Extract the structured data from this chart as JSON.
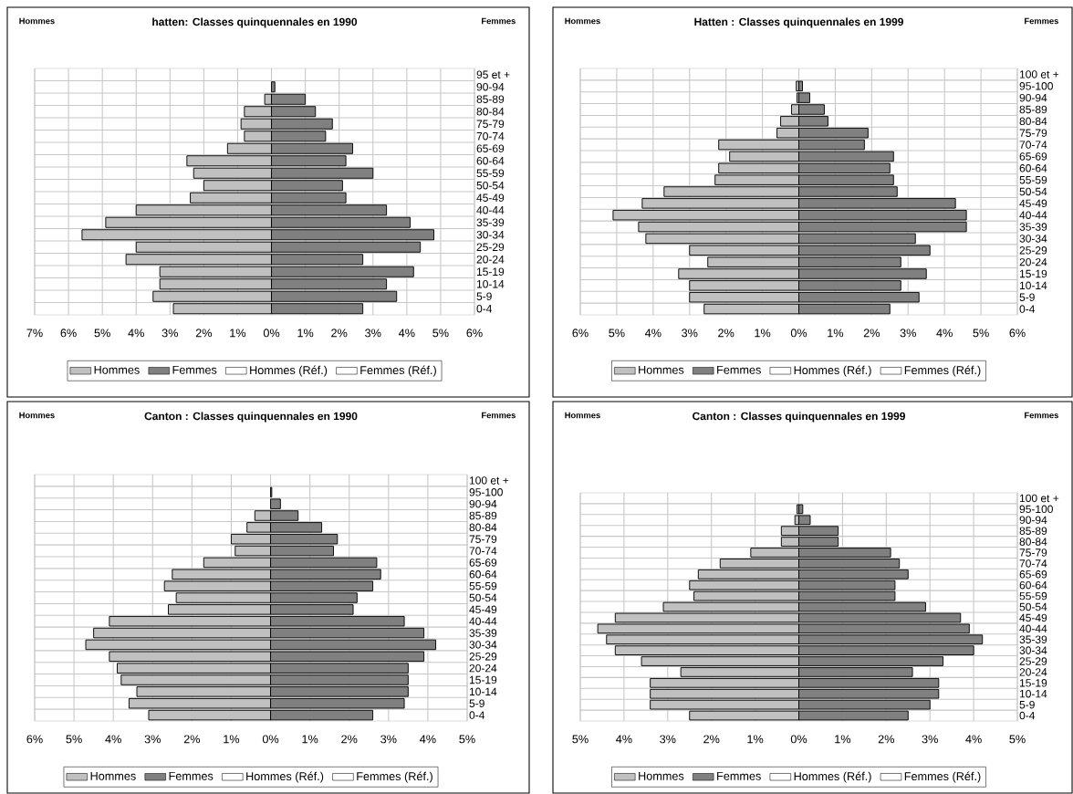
{
  "chart_data": [
    {
      "type": "bar",
      "orientation": "horizontal",
      "title": "hatten: Classes quinquennales en 1990",
      "annotations": [
        "Hommes",
        "Femmes"
      ],
      "categories": [
        "95 et +",
        "90-94",
        "85-89",
        "80-84",
        "75-79",
        "70-74",
        "65-69",
        "60-64",
        "55-59",
        "50-54",
        "45-49",
        "40-44",
        "35-39",
        "30-34",
        "25-29",
        "20-24",
        "15-19",
        "10-14",
        "5-9",
        "0-4"
      ],
      "series": [
        {
          "name": "Hommes",
          "color": "#c0c0c0",
          "values": [
            null,
            null,
            -0.2,
            -0.8,
            -0.9,
            -0.8,
            -1.3,
            -2.5,
            -2.3,
            -2.0,
            -2.4,
            -4.0,
            -4.9,
            -5.6,
            -4.0,
            -4.3,
            -3.3,
            -3.3,
            -3.5,
            -2.9
          ]
        },
        {
          "name": "Femmes",
          "color": "#808080",
          "values": [
            null,
            0.1,
            1.0,
            1.3,
            1.8,
            1.6,
            2.4,
            2.2,
            3.0,
            2.1,
            2.2,
            3.4,
            4.1,
            4.8,
            4.4,
            2.7,
            4.2,
            3.4,
            3.7,
            2.7
          ]
        },
        {
          "name": "Hommes (Réf.)",
          "color": "#ffffff",
          "values": [
            null,
            null,
            null,
            null,
            null,
            null,
            null,
            null,
            null,
            null,
            null,
            null,
            null,
            null,
            null,
            null,
            null,
            null,
            null,
            null
          ]
        },
        {
          "name": "Femmes (Réf.)",
          "color": "#ffffff",
          "values": [
            null,
            null,
            null,
            null,
            null,
            null,
            null,
            null,
            null,
            null,
            null,
            null,
            null,
            null,
            null,
            null,
            null,
            null,
            null,
            null
          ]
        }
      ],
      "xlim": [
        -7,
        6
      ],
      "xticks": [
        {
          "value": -7,
          "label": "7%"
        },
        {
          "value": -6,
          "label": "6%"
        },
        {
          "value": -5,
          "label": "5%"
        },
        {
          "value": -4,
          "label": "4%"
        },
        {
          "value": -3,
          "label": "3%"
        },
        {
          "value": -2,
          "label": "2%"
        },
        {
          "value": -1,
          "label": "1%"
        },
        {
          "value": 0,
          "label": "0%"
        },
        {
          "value": 1,
          "label": "1%"
        },
        {
          "value": 2,
          "label": "2%"
        },
        {
          "value": 3,
          "label": "3%"
        },
        {
          "value": 4,
          "label": "4%"
        },
        {
          "value": 5,
          "label": "5%"
        },
        {
          "value": 6,
          "label": "6%"
        }
      ],
      "stacked": true,
      "grid": true,
      "legend": "bottom"
    },
    {
      "type": "bar",
      "orientation": "horizontal",
      "title": "Hatten : Classes quinquennales en 1999",
      "annotations": [
        "Hommes",
        "Femmes"
      ],
      "categories": [
        "100 et +",
        "95-100",
        "90-94",
        "85-89",
        "80-84",
        "75-79",
        "70-74",
        "65-69",
        "60-64",
        "55-59",
        "50-54",
        "45-49",
        "40-44",
        "35-39",
        "30-34",
        "25-29",
        "20-24",
        "15-19",
        "10-14",
        "5-9",
        "0-4"
      ],
      "series": [
        {
          "name": "Hommes",
          "color": "#c0c0c0",
          "values": [
            null,
            -0.07,
            -0.05,
            -0.2,
            -0.5,
            -0.6,
            -2.2,
            -1.9,
            -2.2,
            -2.3,
            -3.7,
            -4.3,
            -5.1,
            -4.4,
            -4.2,
            -3.0,
            -2.5,
            -3.3,
            -3.0,
            -3.0,
            -2.6
          ]
        },
        {
          "name": "Femmes",
          "color": "#808080",
          "values": [
            null,
            0.1,
            0.3,
            0.7,
            0.8,
            1.9,
            1.8,
            2.6,
            2.5,
            2.6,
            2.7,
            4.3,
            4.6,
            4.6,
            3.2,
            3.6,
            2.8,
            3.5,
            2.8,
            3.3,
            2.5
          ]
        },
        {
          "name": "Hommes (Réf.)",
          "color": "#ffffff",
          "values": [
            null,
            null,
            null,
            null,
            null,
            null,
            null,
            null,
            null,
            null,
            null,
            null,
            null,
            null,
            null,
            null,
            null,
            null,
            null,
            null,
            null
          ]
        },
        {
          "name": "Femmes (Réf.)",
          "color": "#ffffff",
          "values": [
            null,
            null,
            null,
            null,
            null,
            null,
            null,
            null,
            null,
            null,
            null,
            null,
            null,
            null,
            null,
            null,
            null,
            null,
            null,
            null,
            null
          ]
        }
      ],
      "xlim": [
        -6,
        6
      ],
      "xticks": [
        {
          "value": -6,
          "label": "6%"
        },
        {
          "value": -5,
          "label": "5%"
        },
        {
          "value": -4,
          "label": "4%"
        },
        {
          "value": -3,
          "label": "3%"
        },
        {
          "value": -2,
          "label": "2%"
        },
        {
          "value": -1,
          "label": "1%"
        },
        {
          "value": 0,
          "label": "0%"
        },
        {
          "value": 1,
          "label": "1%"
        },
        {
          "value": 2,
          "label": "2%"
        },
        {
          "value": 3,
          "label": "3%"
        },
        {
          "value": 4,
          "label": "4%"
        },
        {
          "value": 5,
          "label": "5%"
        },
        {
          "value": 6,
          "label": "6%"
        }
      ],
      "stacked": true,
      "grid": true,
      "legend": "bottom"
    },
    {
      "type": "bar",
      "orientation": "horizontal",
      "title": "Canton : Classes quinquennales en 1990",
      "annotations": [
        "Hommes",
        "Femmes"
      ],
      "categories": [
        "100 et +",
        "95-100",
        "90-94",
        "85-89",
        "80-84",
        "75-79",
        "70-74",
        "65-69",
        "60-64",
        "55-59",
        "50-54",
        "45-49",
        "40-44",
        "35-39",
        "30-34",
        "25-29",
        "20-24",
        "15-19",
        "10-14",
        "5-9",
        "0-4"
      ],
      "series": [
        {
          "name": "Hommes",
          "color": "#c0c0c0",
          "values": [
            null,
            null,
            null,
            -0.4,
            -0.6,
            -1.0,
            -0.9,
            -1.7,
            -2.5,
            -2.7,
            -2.4,
            -2.6,
            -4.1,
            -4.5,
            -4.7,
            -4.1,
            -3.9,
            -3.8,
            -3.4,
            -3.6,
            -3.1
          ]
        },
        {
          "name": "Femmes",
          "color": "#808080",
          "values": [
            null,
            0.03,
            0.25,
            0.7,
            1.3,
            1.7,
            1.6,
            2.7,
            2.8,
            2.6,
            2.2,
            2.1,
            3.4,
            3.9,
            4.2,
            3.9,
            3.5,
            3.5,
            3.5,
            3.4,
            2.6
          ]
        },
        {
          "name": "Hommes (Réf.)",
          "color": "#ffffff",
          "values": [
            null,
            null,
            null,
            null,
            null,
            null,
            null,
            null,
            null,
            null,
            null,
            null,
            null,
            null,
            null,
            null,
            null,
            null,
            null,
            null,
            null
          ]
        },
        {
          "name": "Femmes (Réf.)",
          "color": "#ffffff",
          "values": [
            null,
            null,
            null,
            null,
            null,
            null,
            null,
            null,
            null,
            null,
            null,
            null,
            null,
            null,
            null,
            null,
            null,
            null,
            null,
            null,
            null
          ]
        }
      ],
      "xlim": [
        -6,
        5
      ],
      "xticks": [
        {
          "value": -6,
          "label": "6%"
        },
        {
          "value": -5,
          "label": "5%"
        },
        {
          "value": -4,
          "label": "4%"
        },
        {
          "value": -3,
          "label": "3%"
        },
        {
          "value": -2,
          "label": "2%"
        },
        {
          "value": -1,
          "label": "1%"
        },
        {
          "value": 0,
          "label": "0%"
        },
        {
          "value": 1,
          "label": "1%"
        },
        {
          "value": 2,
          "label": "2%"
        },
        {
          "value": 3,
          "label": "3%"
        },
        {
          "value": 4,
          "label": "4%"
        },
        {
          "value": 5,
          "label": "5%"
        }
      ],
      "stacked": true,
      "grid": true,
      "legend": "bottom"
    },
    {
      "type": "bar",
      "orientation": "horizontal",
      "title": "Canton : Classes quinquennales en 1999",
      "annotations": [
        "Hommes",
        "Femmes"
      ],
      "categories": [
        "100 et +",
        "95-100",
        "90-94",
        "85-89",
        "80-84",
        "75-79",
        "70-74",
        "65-69",
        "60-64",
        "55-59",
        "50-54",
        "45-49",
        "40-44",
        "35-39",
        "30-34",
        "25-29",
        "20-24",
        "15-19",
        "10-14",
        "5-9",
        "0-4"
      ],
      "series": [
        {
          "name": "Hommes",
          "color": "#c0c0c0",
          "values": [
            null,
            -0.04,
            -0.09,
            -0.4,
            -0.4,
            -1.1,
            -1.8,
            -2.3,
            -2.5,
            -2.4,
            -3.1,
            -4.2,
            -4.6,
            -4.4,
            -4.2,
            -3.6,
            -2.7,
            -3.4,
            -3.4,
            -3.4,
            -2.5
          ]
        },
        {
          "name": "Femmes",
          "color": "#808080",
          "values": [
            null,
            0.09,
            0.26,
            0.9,
            0.9,
            2.1,
            2.3,
            2.5,
            2.2,
            2.2,
            2.9,
            3.7,
            3.9,
            4.2,
            4.0,
            3.3,
            2.6,
            3.2,
            3.2,
            3.0,
            2.5
          ]
        },
        {
          "name": "Hommes (Réf.)",
          "color": "#ffffff",
          "values": [
            null,
            null,
            null,
            null,
            null,
            null,
            null,
            null,
            null,
            null,
            null,
            null,
            null,
            null,
            null,
            null,
            null,
            null,
            null,
            null,
            null
          ]
        },
        {
          "name": "Femmes (Réf.)",
          "color": "#ffffff",
          "values": [
            null,
            null,
            null,
            null,
            null,
            null,
            null,
            null,
            null,
            null,
            null,
            null,
            null,
            null,
            null,
            null,
            null,
            null,
            null,
            null,
            null
          ]
        }
      ],
      "xlim": [
        -5,
        5
      ],
      "xticks": [
        {
          "value": -5,
          "label": "5%"
        },
        {
          "value": -4,
          "label": "4%"
        },
        {
          "value": -3,
          "label": "3%"
        },
        {
          "value": -2,
          "label": "2%"
        },
        {
          "value": -1,
          "label": "1%"
        },
        {
          "value": 0,
          "label": "0%"
        },
        {
          "value": 1,
          "label": "1%"
        },
        {
          "value": 2,
          "label": "2%"
        },
        {
          "value": 3,
          "label": "3%"
        },
        {
          "value": 4,
          "label": "4%"
        },
        {
          "value": 5,
          "label": "5%"
        }
      ],
      "stacked": true,
      "grid": true,
      "legend": "bottom"
    }
  ]
}
